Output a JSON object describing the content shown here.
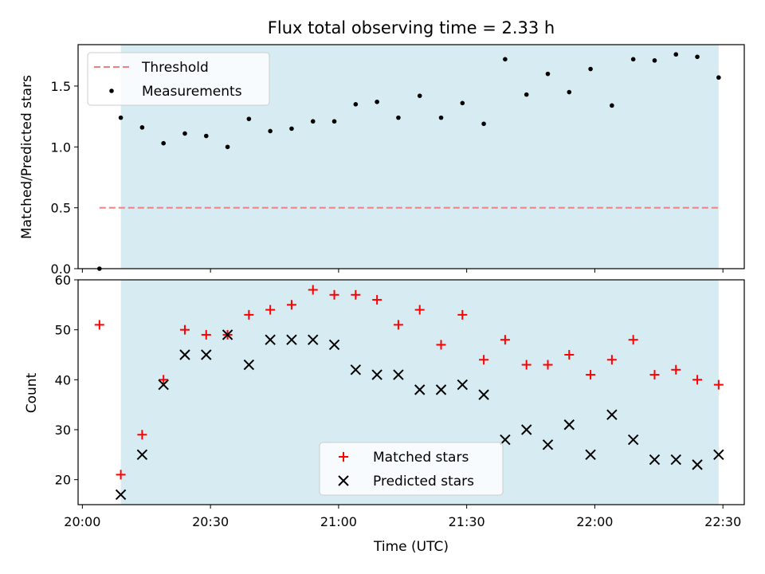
{
  "figure_title": "Flux total observing time = 2.33 h",
  "chart_data": [
    {
      "type": "scatter",
      "panel": "top",
      "ylabel": "Matched/Predicted stars",
      "xlabel": "",
      "ylim": [
        0,
        1.84
      ],
      "yticks": [
        0.0,
        0.5,
        1.0,
        1.5
      ],
      "ytick_labels": [
        "0.0",
        "0.5",
        "1.0",
        "1.5"
      ],
      "shaded_interval": [
        "20:09",
        "22:29"
      ],
      "shade_color": "#add8e6",
      "legend_position": "upper-left",
      "series": [
        {
          "name": "Threshold",
          "kind": "hline",
          "y": 0.5,
          "x_range": [
            "20:04",
            "22:29"
          ],
          "color": "#f08080",
          "style": "dashed"
        },
        {
          "name": "Measurements",
          "kind": "dots",
          "color": "#000000",
          "points": [
            [
              "20:04",
              0.0
            ],
            [
              "20:09",
              1.24
            ],
            [
              "20:14",
              1.16
            ],
            [
              "20:19",
              1.03
            ],
            [
              "20:24",
              1.11
            ],
            [
              "20:29",
              1.09
            ],
            [
              "20:34",
              1.0
            ],
            [
              "20:39",
              1.23
            ],
            [
              "20:44",
              1.13
            ],
            [
              "20:49",
              1.15
            ],
            [
              "20:54",
              1.21
            ],
            [
              "20:59",
              1.21
            ],
            [
              "21:04",
              1.35
            ],
            [
              "21:09",
              1.37
            ],
            [
              "21:14",
              1.24
            ],
            [
              "21:19",
              1.42
            ],
            [
              "21:24",
              1.24
            ],
            [
              "21:29",
              1.36
            ],
            [
              "21:34",
              1.19
            ],
            [
              "21:39",
              1.72
            ],
            [
              "21:44",
              1.43
            ],
            [
              "21:49",
              1.6
            ],
            [
              "21:54",
              1.45
            ],
            [
              "21:59",
              1.64
            ],
            [
              "22:04",
              1.34
            ],
            [
              "22:09",
              1.72
            ],
            [
              "22:14",
              1.71
            ],
            [
              "22:19",
              1.76
            ],
            [
              "22:24",
              1.74
            ],
            [
              "22:29",
              1.57
            ]
          ]
        }
      ]
    },
    {
      "type": "scatter",
      "panel": "bottom",
      "ylabel": "Count",
      "xlabel": "Time (UTC)",
      "ylim": [
        15,
        60
      ],
      "yticks": [
        20,
        30,
        40,
        50,
        60
      ],
      "ytick_labels": [
        "20",
        "30",
        "40",
        "50",
        "60"
      ],
      "xticks": [
        "20:00",
        "20:30",
        "21:00",
        "21:30",
        "22:00",
        "22:30"
      ],
      "xlim": [
        "19:59",
        "22:35"
      ],
      "shaded_interval": [
        "20:09",
        "22:29"
      ],
      "shade_color": "#add8e6",
      "legend_position": "lower-center",
      "times": [
        "20:04",
        "20:09",
        "20:14",
        "20:19",
        "20:24",
        "20:29",
        "20:34",
        "20:39",
        "20:44",
        "20:49",
        "20:54",
        "20:59",
        "21:04",
        "21:09",
        "21:14",
        "21:19",
        "21:24",
        "21:29",
        "21:34",
        "21:39",
        "21:44",
        "21:49",
        "21:54",
        "21:59",
        "22:04",
        "22:09",
        "22:14",
        "22:19",
        "22:24",
        "22:29"
      ],
      "series": [
        {
          "name": "Matched stars",
          "marker": "plus",
          "color": "#ff0000",
          "values": [
            51,
            21,
            29,
            40,
            50,
            49,
            49,
            53,
            54,
            55,
            58,
            57,
            57,
            56,
            51,
            54,
            47,
            53,
            44,
            48,
            43,
            43,
            45,
            41,
            44,
            48,
            41,
            42,
            40,
            39
          ]
        },
        {
          "name": "Predicted stars",
          "marker": "x",
          "color": "#000000",
          "values": [
            null,
            17,
            25,
            39,
            45,
            45,
            49,
            43,
            48,
            48,
            48,
            47,
            42,
            41,
            41,
            38,
            38,
            39,
            37,
            28,
            30,
            27,
            31,
            25,
            33,
            28,
            24,
            24,
            23,
            25
          ]
        }
      ]
    }
  ]
}
